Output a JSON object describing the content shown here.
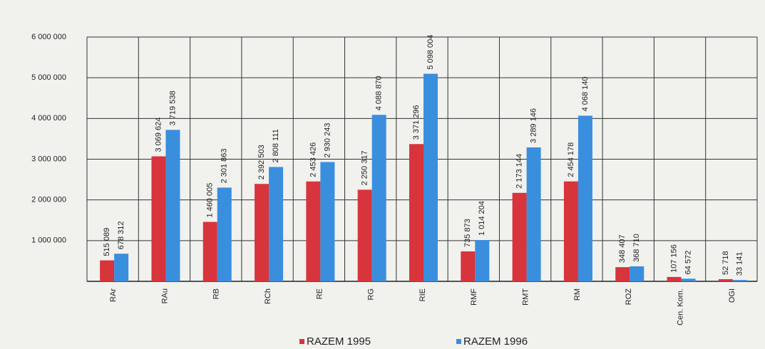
{
  "chart_data": {
    "type": "bar",
    "categories": [
      "RAr",
      "RAu",
      "RB",
      "RCh",
      "RE",
      "RG",
      "RIE",
      "RMF",
      "RMT",
      "RM",
      "ROZ",
      "Cen. Kom.",
      "OGI"
    ],
    "series": [
      {
        "name": "RAZEM 1995",
        "color": "#d8343c",
        "values": [
          515089,
          3069624,
          1460005,
          2392503,
          2453426,
          2250317,
          3371296,
          735873,
          2173144,
          2454178,
          348407,
          107156,
          52718
        ],
        "value_labels": [
          "515 089",
          "3 069 624",
          "1 460 005",
          "2 392 503",
          "2 453 426",
          "2 250 317",
          "3 371 296",
          "735 873",
          "2 173 144",
          "2 454 178",
          "348 407",
          "107 156",
          "52 718"
        ]
      },
      {
        "name": "RAZEM 1996",
        "color": "#3a8ede",
        "values": [
          678312,
          3719538,
          2301863,
          2808111,
          2930243,
          4088870,
          5098004,
          1014204,
          3289146,
          4068140,
          368710,
          64572,
          33141
        ],
        "value_labels": [
          "678 312",
          "3 719 538",
          "2 301 863",
          "2 808 111",
          "2 930 243",
          "4 088 870",
          "5 098 004",
          "1 014 204",
          "3 289 146",
          "4 068 140",
          "368 710",
          "64 572",
          "33 141"
        ]
      }
    ],
    "ylim": [
      0,
      6000000
    ],
    "yticks": [
      {
        "value": 1000000,
        "label": "1 000 000"
      },
      {
        "value": 2000000,
        "label": "2 000 000"
      },
      {
        "value": 3000000,
        "label": "3 000 000"
      },
      {
        "value": 4000000,
        "label": "4 000 000"
      },
      {
        "value": 5000000,
        "label": "5 000 000"
      },
      {
        "value": 6000000,
        "label": "6 000 000"
      }
    ],
    "grid": true,
    "legend": "bottom"
  }
}
